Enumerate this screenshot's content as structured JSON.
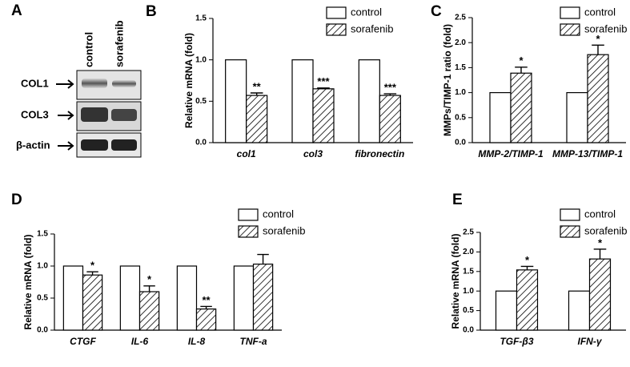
{
  "blot": {
    "panel": "A",
    "lanes": [
      "control",
      "sorafenib"
    ],
    "bands": [
      "COL1",
      "COL3",
      "β-actin"
    ]
  },
  "chart_data": [
    {
      "type": "bar",
      "panel": "B",
      "ylabel": "Relative mRNA (fold)",
      "categories": [
        "col1",
        "col3",
        "fibronectin"
      ],
      "series": [
        {
          "name": "control",
          "color": "#ffffff",
          "hatch": false,
          "values": [
            1,
            1,
            1
          ]
        },
        {
          "name": "sorafenib",
          "color": "#ffffff",
          "hatch": true,
          "values": [
            0.57,
            0.65,
            0.57
          ],
          "errors": [
            0.03,
            0.01,
            0.02
          ]
        }
      ],
      "annotations": [
        "**",
        "***",
        "***"
      ],
      "ylim": [
        0,
        1.5
      ],
      "yticks": [
        {
          "value": 0,
          "label": "0.0"
        },
        {
          "value": 0.5,
          "label": "0.5"
        },
        {
          "value": 1,
          "label": "1.0"
        },
        {
          "value": 1.5,
          "label": "1.5"
        }
      ]
    },
    {
      "type": "bar",
      "panel": "C",
      "ylabel": "MMPs/TIMP-1 ratio (fold)",
      "categories": [
        "MMP-2/TIMP-1",
        "MMP-13/TIMP-1"
      ],
      "series": [
        {
          "name": "control",
          "color": "#ffffff",
          "hatch": false,
          "values": [
            1,
            1
          ]
        },
        {
          "name": "sorafenib",
          "color": "#ffffff",
          "hatch": true,
          "values": [
            1.39,
            1.76
          ],
          "errors": [
            0.12,
            0.19
          ]
        }
      ],
      "annotations": [
        "*",
        "*"
      ],
      "ylim": [
        0,
        2.5
      ],
      "yticks": [
        {
          "value": 0,
          "label": "0.0"
        },
        {
          "value": 0.5,
          "label": "0.5"
        },
        {
          "value": 1,
          "label": "1.0"
        },
        {
          "value": 1.5,
          "label": "1.5"
        },
        {
          "value": 2,
          "label": "2.0"
        },
        {
          "value": 2.5,
          "label": "2.5"
        }
      ]
    },
    {
      "type": "bar",
      "panel": "D",
      "ylabel": "Relative mRNA (fold)",
      "categories": [
        "CTGF",
        "IL-6",
        "IL-8",
        "TNF-a"
      ],
      "series": [
        {
          "name": "control",
          "color": "#ffffff",
          "hatch": false,
          "values": [
            1,
            1,
            1,
            1
          ]
        },
        {
          "name": "sorafenib",
          "color": "#ffffff",
          "hatch": true,
          "values": [
            0.86,
            0.6,
            0.33,
            1.03
          ],
          "errors": [
            0.05,
            0.09,
            0.04,
            0.15
          ]
        }
      ],
      "annotations": [
        "*",
        "*",
        "**",
        null
      ],
      "ylim": [
        0,
        1.5
      ],
      "yticks": [
        {
          "value": 0,
          "label": "0.0"
        },
        {
          "value": 0.5,
          "label": "0.5"
        },
        {
          "value": 1,
          "label": "1.0"
        },
        {
          "value": 1.5,
          "label": "1.5"
        }
      ]
    },
    {
      "type": "bar",
      "panel": "E",
      "ylabel": "Relative mRNA (fold)",
      "categories": [
        "TGF-β3",
        "IFN-γ"
      ],
      "series": [
        {
          "name": "control",
          "color": "#ffffff",
          "hatch": false,
          "values": [
            1,
            1
          ]
        },
        {
          "name": "sorafenib",
          "color": "#ffffff",
          "hatch": true,
          "values": [
            1.54,
            1.82
          ],
          "errors": [
            0.09,
            0.25
          ]
        }
      ],
      "annotations": [
        "*",
        "*"
      ],
      "ylim": [
        0,
        2.5
      ],
      "yticks": [
        {
          "value": 0,
          "label": "0.0"
        },
        {
          "value": 0.5,
          "label": "0.5"
        },
        {
          "value": 1,
          "label": "1.0"
        },
        {
          "value": 1.5,
          "label": "1.5"
        },
        {
          "value": 2,
          "label": "2.0"
        },
        {
          "value": 2.5,
          "label": "2.5"
        }
      ]
    }
  ]
}
